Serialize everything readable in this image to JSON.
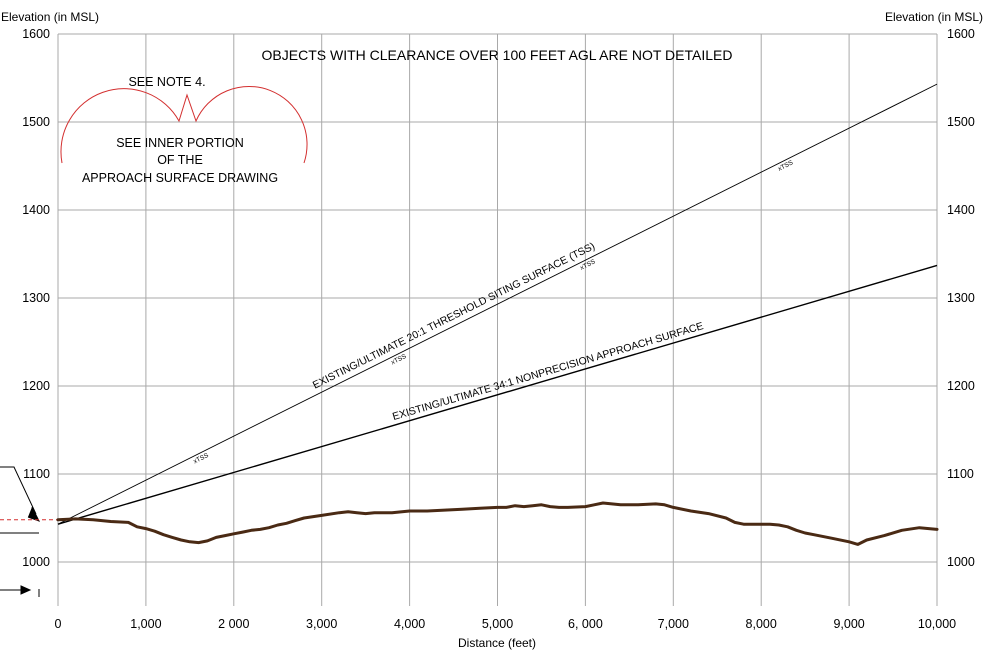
{
  "chart_data": {
    "type": "line",
    "xlabel": "Distance (feet)",
    "ylabel_left": "Elevation (in MSL)",
    "ylabel_right": "Elevation (in MSL)",
    "xlim": [
      0,
      10000
    ],
    "ylim": [
      950,
      1600
    ],
    "grid": true,
    "x_ticks": [
      0,
      1000,
      2000,
      3000,
      4000,
      5000,
      6000,
      7000,
      8000,
      9000,
      10000
    ],
    "x_tick_labels": [
      "0",
      "1,000",
      "2 000",
      "3,000",
      "4,000",
      "5,000",
      "6, 000",
      "7,000",
      "8,000",
      "9,000",
      "10,000"
    ],
    "y_ticks": [
      1000,
      1100,
      1200,
      1300,
      1400,
      1500,
      1600
    ],
    "y_tick_labels": [
      "1000",
      "1100",
      "1200",
      "1300",
      "1400",
      "1500",
      "1600"
    ],
    "banner": "OBJECTS WITH CLEARANCE OVER 100 FEET AGL ARE NOT DETAILED",
    "callout": {
      "note": "SEE NOTE 4.",
      "lines": [
        "SEE INNER PORTION",
        "OF THE",
        "APPROACH SURFACE DRAWING"
      ]
    },
    "surfaces": [
      {
        "label": "EXISTING/ULTIMATE 20:1 THRESHOLD SITING SURFACE (TSS)",
        "x": [
          0,
          10000
        ],
        "y": [
          1043,
          1543
        ]
      },
      {
        "label": "EXISTING/ULTIMATE 34:1 NONPRECISION APPROACH SURFACE",
        "x": [
          0,
          10000
        ],
        "y": [
          1043,
          1337
        ]
      }
    ],
    "tss_marker": "xTSS",
    "tss_marker_x": [
      1600,
      3850,
      6000,
      8250
    ],
    "ground_reference_elevation": 1048,
    "terrain": {
      "x": [
        0,
        200,
        400,
        600,
        800,
        900,
        1000,
        1100,
        1200,
        1300,
        1400,
        1500,
        1600,
        1700,
        1800,
        1900,
        2000,
        2100,
        2200,
        2300,
        2400,
        2500,
        2600,
        2700,
        2800,
        3000,
        3200,
        3300,
        3400,
        3500,
        3600,
        3800,
        4000,
        4200,
        4400,
        4600,
        4800,
        5000,
        5100,
        5200,
        5300,
        5400,
        5500,
        5600,
        5700,
        5800,
        6000,
        6100,
        6200,
        6300,
        6400,
        6600,
        6800,
        6900,
        7000,
        7200,
        7400,
        7600,
        7700,
        7800,
        8000,
        8100,
        8200,
        8300,
        8400,
        8500,
        8600,
        8800,
        9000,
        9100,
        9200,
        9400,
        9600,
        9800,
        10000
      ],
      "y": [
        1048,
        1049,
        1048,
        1046,
        1045,
        1040,
        1038,
        1035,
        1031,
        1028,
        1025,
        1023,
        1022,
        1024,
        1028,
        1030,
        1032,
        1034,
        1036,
        1037,
        1039,
        1042,
        1044,
        1047,
        1050,
        1053,
        1056,
        1057,
        1056,
        1055,
        1056,
        1056,
        1058,
        1058,
        1059,
        1060,
        1061,
        1062,
        1062,
        1064,
        1063,
        1064,
        1065,
        1063,
        1062,
        1062,
        1063,
        1065,
        1067,
        1066,
        1065,
        1065,
        1066,
        1065,
        1062,
        1058,
        1055,
        1050,
        1045,
        1043,
        1043,
        1043,
        1042,
        1040,
        1036,
        1033,
        1031,
        1027,
        1023,
        1020,
        1025,
        1030,
        1036,
        1039,
        1037
      ]
    },
    "colors": {
      "grid": "#a9a9a9",
      "terrain": "#4a2a14",
      "callout": "#d32f2f",
      "reference_line": "#d32f2f"
    }
  }
}
